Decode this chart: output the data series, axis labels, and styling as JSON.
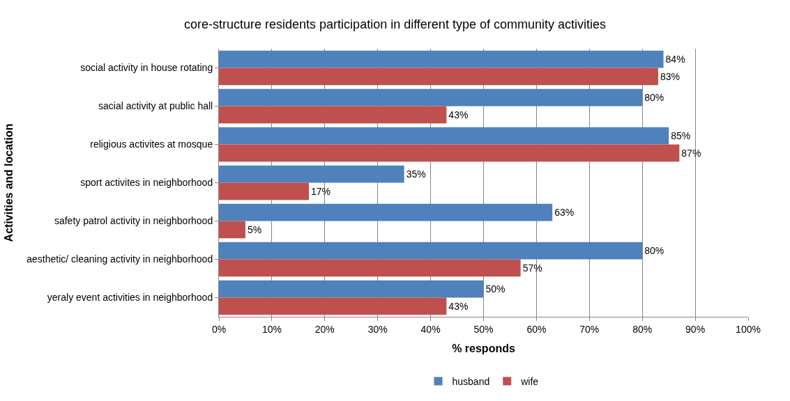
{
  "chart_data": {
    "type": "bar",
    "orientation": "horizontal",
    "title": "core-structure residents participation in different type of community activities",
    "xlabel": "% responds",
    "ylabel": "Activities and location",
    "categories": [
      "social activity in house rotating",
      "sacial activity at public hall",
      "religious activites at mosque",
      "sport activites in neighborhood",
      "safety patrol activity in neighborhood",
      "aesthetic/ cleaning activity in neighborhood",
      "yeraly event activities in neighborhood"
    ],
    "series": [
      {
        "name": "husband",
        "color": "#4f81bd",
        "values": [
          84,
          80,
          85,
          35,
          63,
          80,
          50
        ],
        "value_labels": [
          "84%",
          "80%",
          "85%",
          "35%",
          "63%",
          "80%",
          "50%"
        ]
      },
      {
        "name": "wife",
        "color": "#c0504d",
        "values": [
          83,
          43,
          87,
          17,
          5,
          57,
          43
        ],
        "value_labels": [
          "83%",
          "43%",
          "87%",
          "17%",
          "5%",
          "57%",
          "43%"
        ]
      }
    ],
    "xlim": [
      0,
      100
    ],
    "xticks": [
      {
        "value": 0,
        "label": "0%"
      },
      {
        "value": 10,
        "label": "10%"
      },
      {
        "value": 20,
        "label": "20%"
      },
      {
        "value": 30,
        "label": "30%"
      },
      {
        "value": 40,
        "label": "40%"
      },
      {
        "value": 50,
        "label": "50%"
      },
      {
        "value": 60,
        "label": "60%"
      },
      {
        "value": 70,
        "label": "70%"
      },
      {
        "value": 80,
        "label": "80%"
      },
      {
        "value": 90,
        "label": "90%"
      },
      {
        "value": 100,
        "label": "100%"
      }
    ],
    "grid": "x",
    "legend": "bottom"
  }
}
